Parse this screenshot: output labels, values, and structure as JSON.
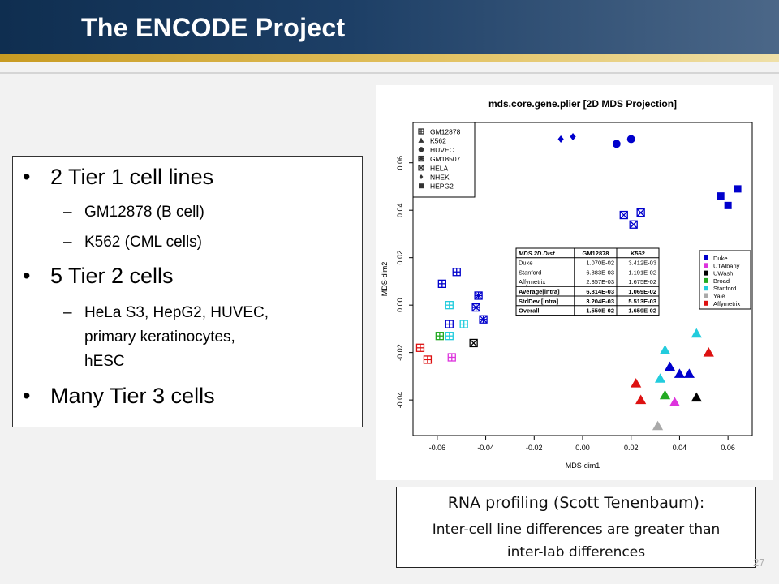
{
  "slide": {
    "title": "The ENCODE Project",
    "page_number": "27",
    "colors": {
      "header_dark": "#0f2e50",
      "header_light": "#4b6788",
      "gold": "#d7a93a"
    }
  },
  "bullets": {
    "b1": "2 Tier 1 cell lines",
    "b1_sub1": "GM12878 (B cell)",
    "b1_sub2": "K562 (CML cells)",
    "b2": "5 Tier 2 cells",
    "b2_sub1_line1": "HeLa S3, HepG2, HUVEC,",
    "b2_sub1_line2": "primary keratinocytes,",
    "b2_sub1_line3": "hESC",
    "b3": "Many Tier 3 cells",
    "bullet_char": "•",
    "dash_char": "–"
  },
  "caption": {
    "line1": "RNA profiling (Scott Tenenbaum):",
    "line2": "Inter-cell line differences are greater than",
    "line3": "inter-lab differences"
  },
  "chart_data": {
    "type": "scatter",
    "title": "mds.core.gene.plier [2D MDS Projection]",
    "xlabel": "MDS-dim1",
    "ylabel": "MDS-dim2",
    "xlim": [
      -0.07,
      0.07
    ],
    "ylim": [
      -0.055,
      0.077
    ],
    "xticks": [
      "-0.06",
      "-0.04",
      "-0.02",
      "0.00",
      "0.02",
      "0.04",
      "0.06"
    ],
    "xtick_values": [
      -0.06,
      -0.04,
      -0.02,
      0.0,
      0.02,
      0.04,
      0.06
    ],
    "yticks": [
      "-0.04",
      "-0.02",
      "0.00",
      "0.02",
      "0.04",
      "0.06"
    ],
    "ytick_values": [
      -0.04,
      -0.02,
      0.0,
      0.02,
      0.04,
      0.06
    ],
    "grid": false,
    "shape_legend": {
      "placement": "top-left",
      "entries": [
        {
          "label": "GM12878",
          "shape": "boxplus"
        },
        {
          "label": "K562",
          "shape": "triangle"
        },
        {
          "label": "HUVEC",
          "shape": "circle"
        },
        {
          "label": "GM18507",
          "shape": "boxcross"
        },
        {
          "label": "HELA",
          "shape": "boxx"
        },
        {
          "label": "NHEK",
          "shape": "diamond"
        },
        {
          "label": "HEPG2",
          "shape": "square"
        }
      ]
    },
    "color_legend": {
      "placement": "right",
      "entries": [
        {
          "label": "Duke",
          "color": "#0000cc"
        },
        {
          "label": "UTAlbany",
          "color": "#dd33dd"
        },
        {
          "label": "UWash",
          "color": "#000000"
        },
        {
          "label": "Broad",
          "color": "#22aa22"
        },
        {
          "label": "Stanford",
          "color": "#22ccdd"
        },
        {
          "label": "Yale",
          "color": "#aaaaaa"
        },
        {
          "label": "Affymetrix",
          "color": "#dd1111"
        }
      ]
    },
    "table": {
      "headers": [
        "MDS.2D.Dist",
        "GM12878",
        "K562"
      ],
      "rows": [
        [
          "Duke",
          "1.070E-02",
          "3.412E-03"
        ],
        [
          "Stanford",
          "6.883E-03",
          "1.191E-02"
        ],
        [
          "Affymetrix",
          "2.857E-03",
          "1.675E-02"
        ],
        [
          "Average[intra]",
          "6.814E-03",
          "1.069E-02"
        ],
        [
          "StdDev [intra]",
          "3.204E-03",
          "5.513E-03"
        ],
        [
          "Overall",
          "1.550E-02",
          "1.659E-02"
        ]
      ]
    },
    "points": [
      {
        "x": -0.009,
        "y": 0.07,
        "shape": "diamond",
        "color": "#0000cc"
      },
      {
        "x": -0.004,
        "y": 0.071,
        "shape": "diamond",
        "color": "#0000cc"
      },
      {
        "x": 0.014,
        "y": 0.068,
        "shape": "circle",
        "color": "#0000cc"
      },
      {
        "x": 0.02,
        "y": 0.07,
        "shape": "circle",
        "color": "#0000cc"
      },
      {
        "x": 0.057,
        "y": 0.046,
        "shape": "square",
        "color": "#0000cc"
      },
      {
        "x": 0.064,
        "y": 0.049,
        "shape": "square",
        "color": "#0000cc"
      },
      {
        "x": 0.06,
        "y": 0.042,
        "shape": "square",
        "color": "#0000cc"
      },
      {
        "x": 0.017,
        "y": 0.038,
        "shape": "boxx",
        "color": "#0000cc"
      },
      {
        "x": 0.024,
        "y": 0.039,
        "shape": "boxx",
        "color": "#0000cc"
      },
      {
        "x": 0.021,
        "y": 0.034,
        "shape": "boxx",
        "color": "#0000cc"
      },
      {
        "x": -0.052,
        "y": 0.014,
        "shape": "boxplus",
        "color": "#0000cc"
      },
      {
        "x": -0.058,
        "y": 0.009,
        "shape": "boxplus",
        "color": "#0000cc"
      },
      {
        "x": -0.043,
        "y": 0.004,
        "shape": "boxcross",
        "color": "#0000cc"
      },
      {
        "x": -0.044,
        "y": -0.001,
        "shape": "boxcross",
        "color": "#0000cc"
      },
      {
        "x": -0.041,
        "y": -0.006,
        "shape": "boxcross",
        "color": "#0000cc"
      },
      {
        "x": -0.055,
        "y": -0.008,
        "shape": "boxplus",
        "color": "#0000cc"
      },
      {
        "x": -0.055,
        "y": 0.0,
        "shape": "boxplus",
        "color": "#22ccdd"
      },
      {
        "x": -0.049,
        "y": -0.008,
        "shape": "boxplus",
        "color": "#22ccdd"
      },
      {
        "x": -0.055,
        "y": -0.013,
        "shape": "boxplus",
        "color": "#22ccdd"
      },
      {
        "x": -0.059,
        "y": -0.013,
        "shape": "boxplus",
        "color": "#22aa22"
      },
      {
        "x": -0.045,
        "y": -0.016,
        "shape": "boxx",
        "color": "#000000"
      },
      {
        "x": -0.067,
        "y": -0.018,
        "shape": "boxplus",
        "color": "#dd1111"
      },
      {
        "x": -0.064,
        "y": -0.023,
        "shape": "boxplus",
        "color": "#dd1111"
      },
      {
        "x": -0.054,
        "y": -0.022,
        "shape": "boxplus",
        "color": "#dd33dd"
      },
      {
        "x": 0.034,
        "y": -0.019,
        "shape": "triangle",
        "color": "#22ccdd"
      },
      {
        "x": 0.047,
        "y": -0.012,
        "shape": "triangle",
        "color": "#22ccdd"
      },
      {
        "x": 0.036,
        "y": -0.026,
        "shape": "triangle",
        "color": "#0000cc"
      },
      {
        "x": 0.04,
        "y": -0.029,
        "shape": "triangle",
        "color": "#0000cc"
      },
      {
        "x": 0.044,
        "y": -0.029,
        "shape": "triangle",
        "color": "#0000cc"
      },
      {
        "x": 0.052,
        "y": -0.02,
        "shape": "triangle",
        "color": "#dd1111"
      },
      {
        "x": 0.032,
        "y": -0.031,
        "shape": "triangle",
        "color": "#22ccdd"
      },
      {
        "x": 0.022,
        "y": -0.033,
        "shape": "triangle",
        "color": "#dd1111"
      },
      {
        "x": 0.024,
        "y": -0.04,
        "shape": "triangle",
        "color": "#dd1111"
      },
      {
        "x": 0.034,
        "y": -0.038,
        "shape": "triangle",
        "color": "#22aa22"
      },
      {
        "x": 0.038,
        "y": -0.041,
        "shape": "triangle",
        "color": "#dd33dd"
      },
      {
        "x": 0.047,
        "y": -0.039,
        "shape": "triangle",
        "color": "#000000"
      },
      {
        "x": 0.031,
        "y": -0.051,
        "shape": "triangle",
        "color": "#aaaaaa"
      }
    ]
  }
}
